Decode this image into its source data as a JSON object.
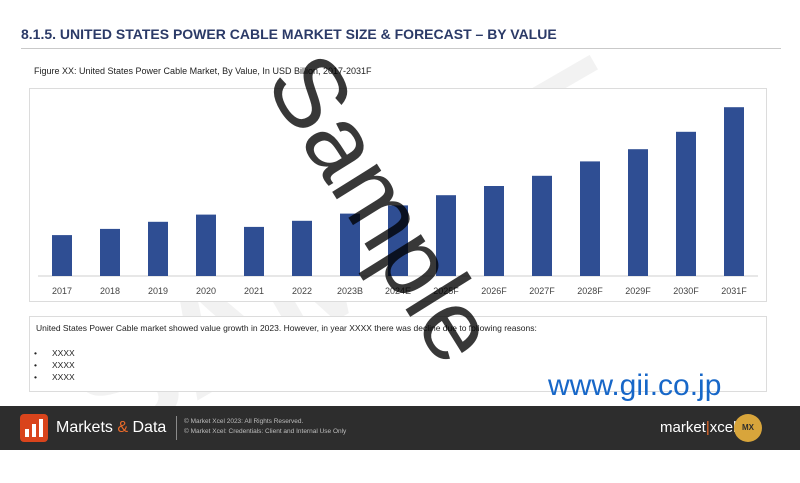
{
  "header": {
    "title": "8.1.5. UNITED STATES POWER CABLE MARKET SIZE & FORECAST – BY VALUE",
    "figure_caption": "Figure XX: United States Power Cable Market, By Value, In USD Billion, 2017-2031F"
  },
  "chart_data": {
    "type": "bar",
    "title": "Figure XX: United States Power Cable Market, By Value, In USD Billion, 2017-2031F",
    "xlabel": "",
    "ylabel": "",
    "categories": [
      "2017",
      "2018",
      "2019",
      "2020",
      "2021",
      "2022",
      "2023B",
      "2024E",
      "2025F",
      "2026F",
      "2027F",
      "2028F",
      "2029F",
      "2030F",
      "2031F"
    ],
    "values": [
      40,
      46,
      53,
      60,
      48,
      54,
      61,
      69,
      79,
      88,
      98,
      112,
      124,
      141,
      165
    ],
    "ylim": [
      0,
      175
    ],
    "grid": false,
    "legend": "none",
    "bar_color": "#2f4e93"
  },
  "summary": {
    "text": "United States Power Cable market showed value growth in 2023. However, in year XXXX there was decline due to following reasons:",
    "bullets": [
      "XXXX",
      "XXXX",
      "XXXX"
    ]
  },
  "watermarks": {
    "main": "Sample",
    "background": "SAMPLE",
    "url": "www.gii.co.jp"
  },
  "footer": {
    "brand_left": "Markets",
    "brand_amp": "&",
    "brand_right": "Data",
    "note1": "© Market Xcel 2023: All Rights Reserved.",
    "note2": "© Market Xcel: Credentials: Client and Internal Use Only",
    "mx_left": "market",
    "mx_sep": "|",
    "mx_right": "xcel",
    "badge": "MX"
  }
}
